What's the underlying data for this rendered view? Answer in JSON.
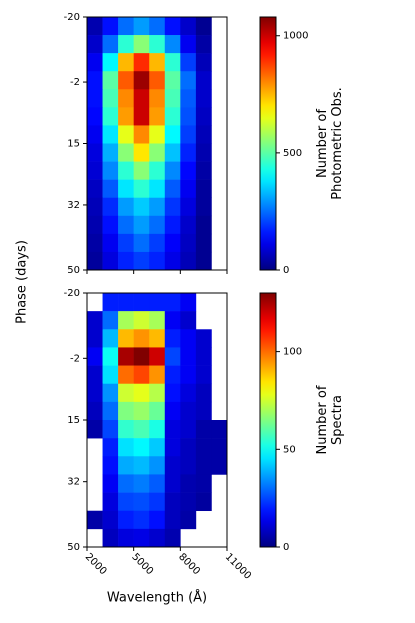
{
  "chart_data": [
    {
      "type": "heatmap",
      "ylabel": "Phase (days)",
      "colorbar_label": [
        "Number of",
        "Photometric Obs."
      ],
      "x_bins": [
        2000,
        3000,
        4000,
        5000,
        6000,
        7000,
        8000,
        9000,
        10000,
        11000
      ],
      "y_bins": [
        -20,
        -15,
        -10,
        -5,
        0,
        5,
        10,
        15,
        20,
        25,
        30,
        35,
        40,
        45,
        50
      ],
      "values": [
        [
          50,
          150,
          250,
          300,
          250,
          150,
          80,
          20,
          null
        ],
        [
          80,
          250,
          450,
          550,
          450,
          280,
          120,
          40,
          null
        ],
        [
          120,
          400,
          750,
          900,
          750,
          450,
          200,
          60,
          null
        ],
        [
          150,
          500,
          850,
          1050,
          850,
          500,
          250,
          80,
          null
        ],
        [
          150,
          480,
          800,
          1000,
          800,
          480,
          230,
          80,
          null
        ],
        [
          140,
          450,
          780,
          1000,
          780,
          450,
          220,
          70,
          null
        ],
        [
          120,
          380,
          650,
          800,
          650,
          400,
          200,
          60,
          null
        ],
        [
          100,
          320,
          550,
          700,
          550,
          340,
          170,
          50,
          null
        ],
        [
          90,
          280,
          450,
          550,
          450,
          280,
          140,
          40,
          null
        ],
        [
          70,
          230,
          380,
          450,
          380,
          230,
          120,
          30,
          null
        ],
        [
          60,
          180,
          300,
          350,
          300,
          190,
          100,
          30,
          null
        ],
        [
          50,
          150,
          250,
          300,
          250,
          160,
          80,
          20,
          null
        ],
        [
          40,
          120,
          200,
          250,
          200,
          130,
          70,
          20,
          null
        ],
        [
          30,
          100,
          170,
          200,
          170,
          110,
          60,
          20,
          null
        ]
      ],
      "xlim": [
        2000,
        11000
      ],
      "xticks": [
        2000,
        5000,
        8000,
        11000
      ],
      "ylim": [
        -20,
        50
      ],
      "yticks": [
        -20,
        -2,
        15,
        32,
        50
      ],
      "clim": [
        0,
        1080
      ],
      "cticks": [
        0,
        500,
        1000
      ],
      "colormap": "jet"
    },
    {
      "type": "heatmap",
      "xlabel": "Wavelength (Å)",
      "colorbar_label": [
        "Number of",
        "Spectra"
      ],
      "x_bins": [
        2000,
        3000,
        4000,
        5000,
        6000,
        7000,
        8000,
        9000,
        10000,
        11000
      ],
      "y_bins": [
        -20,
        -15,
        -10,
        -5,
        0,
        5,
        10,
        15,
        20,
        25,
        30,
        35,
        40,
        45,
        50
      ],
      "values": [
        [
          null,
          20,
          20,
          20,
          20,
          20,
          15,
          null,
          null
        ],
        [
          10,
          30,
          70,
          75,
          70,
          15,
          10,
          null,
          null
        ],
        [
          10,
          40,
          90,
          95,
          90,
          20,
          15,
          10,
          null
        ],
        [
          15,
          50,
          125,
          130,
          120,
          25,
          15,
          10,
          null
        ],
        [
          10,
          45,
          100,
          105,
          95,
          20,
          15,
          10,
          null
        ],
        [
          10,
          35,
          75,
          78,
          72,
          18,
          12,
          8,
          null
        ],
        [
          8,
          30,
          65,
          68,
          62,
          15,
          10,
          8,
          null
        ],
        [
          5,
          25,
          55,
          58,
          52,
          12,
          10,
          5,
          5
        ],
        [
          null,
          20,
          45,
          48,
          42,
          12,
          8,
          5,
          5
        ],
        [
          null,
          18,
          38,
          40,
          35,
          10,
          8,
          5,
          5
        ],
        [
          null,
          15,
          30,
          32,
          28,
          10,
          6,
          5,
          null
        ],
        [
          null,
          12,
          25,
          26,
          23,
          8,
          6,
          4,
          null
        ],
        [
          5,
          10,
          20,
          22,
          18,
          8,
          5,
          null,
          null
        ],
        [
          null,
          8,
          12,
          13,
          10,
          6,
          null,
          null,
          null
        ]
      ],
      "xlim": [
        2000,
        11000
      ],
      "xticks": [
        2000,
        5000,
        8000,
        11000
      ],
      "ylim": [
        -20,
        50
      ],
      "yticks": [
        -20,
        -2,
        15,
        32,
        50
      ],
      "clim": [
        0,
        130
      ],
      "cticks": [
        0,
        50,
        100
      ],
      "colormap": "jet"
    }
  ]
}
